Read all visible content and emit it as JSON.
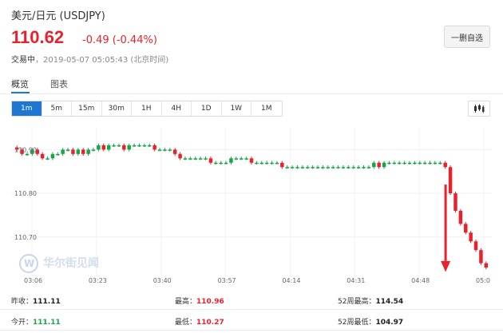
{
  "header": {
    "title": "美元/日元 (USDJPY)",
    "price": "110.62",
    "change": "-0.49 (-0.44%)",
    "status_label": "交易中",
    "status_time": "，2019-05-07 05:05:43 (北京时间)",
    "watch_button": "一删自选"
  },
  "tabs": [
    "概览",
    "图表"
  ],
  "periods": [
    "1m",
    "5m",
    "15m",
    "30m",
    "1H",
    "4H",
    "1D",
    "1W",
    "1M"
  ],
  "active_period": "1m",
  "chart_type_icon": "candlestick-icon",
  "watermark": "华尔街见闻",
  "chart_data": {
    "type": "candlestick",
    "y_ticks": [
      "110.90",
      "110.80",
      "110.70"
    ],
    "x_ticks": [
      "03:06",
      "03:23",
      "03:40",
      "03:57",
      "04:14",
      "04:31",
      "04:48",
      "05:0"
    ],
    "ylim": [
      110.61,
      110.95
    ],
    "grid": true,
    "up_color": "#1aa34a",
    "down_color": "#e8222c",
    "close_series": [
      110.9,
      110.89,
      110.89,
      110.9,
      110.89,
      110.88,
      110.88,
      110.89,
      110.89,
      110.9,
      110.9,
      110.89,
      110.9,
      110.89,
      110.9,
      110.9,
      110.91,
      110.9,
      110.91,
      110.91,
      110.91,
      110.9,
      110.91,
      110.91,
      110.91,
      110.91,
      110.91,
      110.9,
      110.9,
      110.9,
      110.9,
      110.89,
      110.88,
      110.88,
      110.88,
      110.88,
      110.88,
      110.88,
      110.87,
      110.87,
      110.87,
      110.87,
      110.88,
      110.88,
      110.88,
      110.88,
      110.87,
      110.87,
      110.87,
      110.87,
      110.87,
      110.87,
      110.86,
      110.86,
      110.86,
      110.86,
      110.86,
      110.86,
      110.86,
      110.86,
      110.86,
      110.86,
      110.86,
      110.86,
      110.86,
      110.86,
      110.86,
      110.86,
      110.86,
      110.86,
      110.87,
      110.86,
      110.87,
      110.87,
      110.87,
      110.87,
      110.87,
      110.87,
      110.87,
      110.87,
      110.87,
      110.87,
      110.87,
      110.87,
      110.86,
      110.8,
      110.76,
      110.73,
      110.71,
      110.69,
      110.67,
      110.64,
      110.63
    ],
    "annotation": "down-arrow"
  },
  "stats": [
    [
      {
        "label": "昨收：",
        "value": "111.11",
        "color": "#222222"
      },
      {
        "label": "最高：",
        "value": "110.96",
        "color": "#e8222c"
      },
      {
        "label": "52周最高：",
        "value": "114.54",
        "color": "#222222"
      }
    ],
    [
      {
        "label": "今开：",
        "value": "111.11",
        "color": "#1aa34a"
      },
      {
        "label": "最低：",
        "value": "110.27",
        "color": "#e8222c"
      },
      {
        "label": "52周最低：",
        "value": "104.97",
        "color": "#222222"
      }
    ]
  ]
}
